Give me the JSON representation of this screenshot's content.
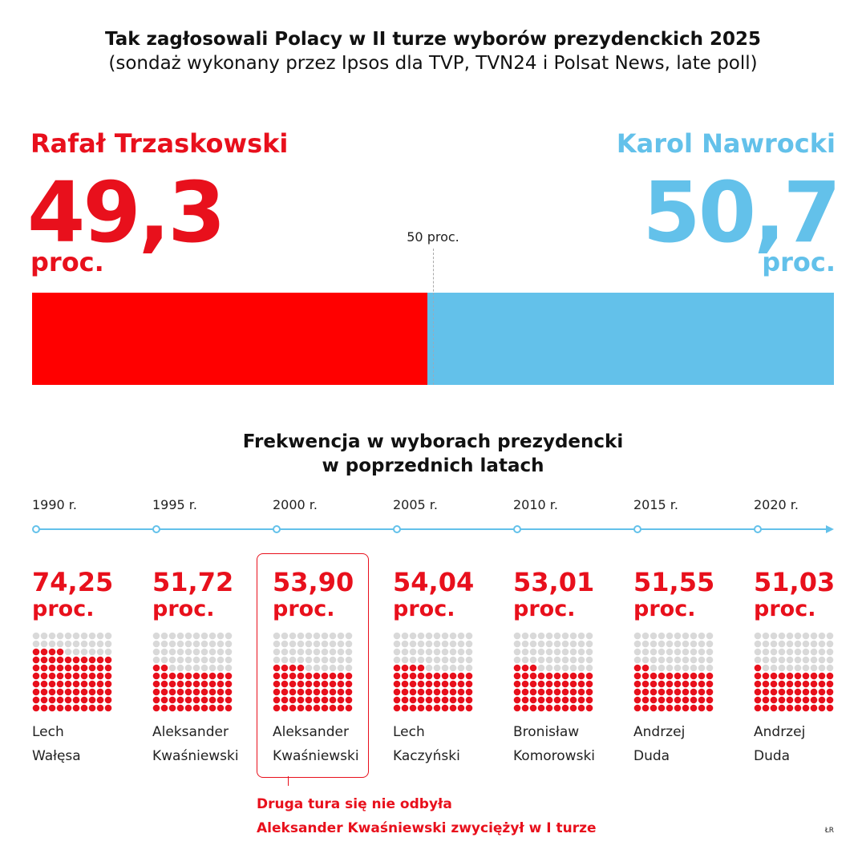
{
  "header": {
    "title": "Tak zagłosowali Polacy w II turze wyborów prezydenckich 2025",
    "subtitle": "(sondaż wykonany przez Ipsos dla TVP, TVN24 i Polsat News, late poll)"
  },
  "colors": {
    "red": "#e8101c",
    "bar_red": "#ff0000",
    "blue": "#63c1ea",
    "dot_grey": "#d9d9d9",
    "timeline": "#63c1ea"
  },
  "chart_data": [
    {
      "type": "bar",
      "categories": [
        "Rafał Trzaskowski",
        "Karol Nawrocki"
      ],
      "values": [
        49.3,
        50.7
      ],
      "value_labels": [
        "49,3",
        "50,7"
      ],
      "unit_label": "proc.",
      "reference_value": 50,
      "reference_label": "50 proc.",
      "xlim": [
        0,
        100
      ]
    },
    {
      "type": "table",
      "title_line1": "Frekwencja w wyborach prezydencki",
      "title_line2": "w poprzednich latach",
      "unit_label": "proc.",
      "rows": [
        {
          "year": "1990 r.",
          "turnout": 74.25,
          "turnout_label": "74,25",
          "winner_first": "Lech",
          "winner_last": "Wałęsa"
        },
        {
          "year": "1995 r.",
          "turnout": 51.72,
          "turnout_label": "51,72",
          "winner_first": "Aleksander",
          "winner_last": "Kwaśniewski"
        },
        {
          "year": "2000 r.",
          "turnout": 53.9,
          "turnout_label": "53,90",
          "winner_first": "Aleksander",
          "winner_last": "Kwaśniewski"
        },
        {
          "year": "2005 r.",
          "turnout": 54.04,
          "turnout_label": "54,04",
          "winner_first": "Lech",
          "winner_last": "Kaczyński"
        },
        {
          "year": "2010 r.",
          "turnout": 53.01,
          "turnout_label": "53,01",
          "winner_first": "Bronisław",
          "winner_last": "Komorowski"
        },
        {
          "year": "2015 r.",
          "turnout": 51.55,
          "turnout_label": "51,55",
          "winner_first": "Andrzej",
          "winner_last": "Duda"
        },
        {
          "year": "2020 r.",
          "turnout": 51.03,
          "turnout_label": "51,03",
          "winner_first": "Andrzej",
          "winner_last": "Duda"
        }
      ]
    }
  ],
  "note": {
    "line1": "Druga tura się nie odbyła",
    "line2": "Aleksander Kwaśniewski zwyciężył w I turze"
  },
  "credit": "ŁR"
}
